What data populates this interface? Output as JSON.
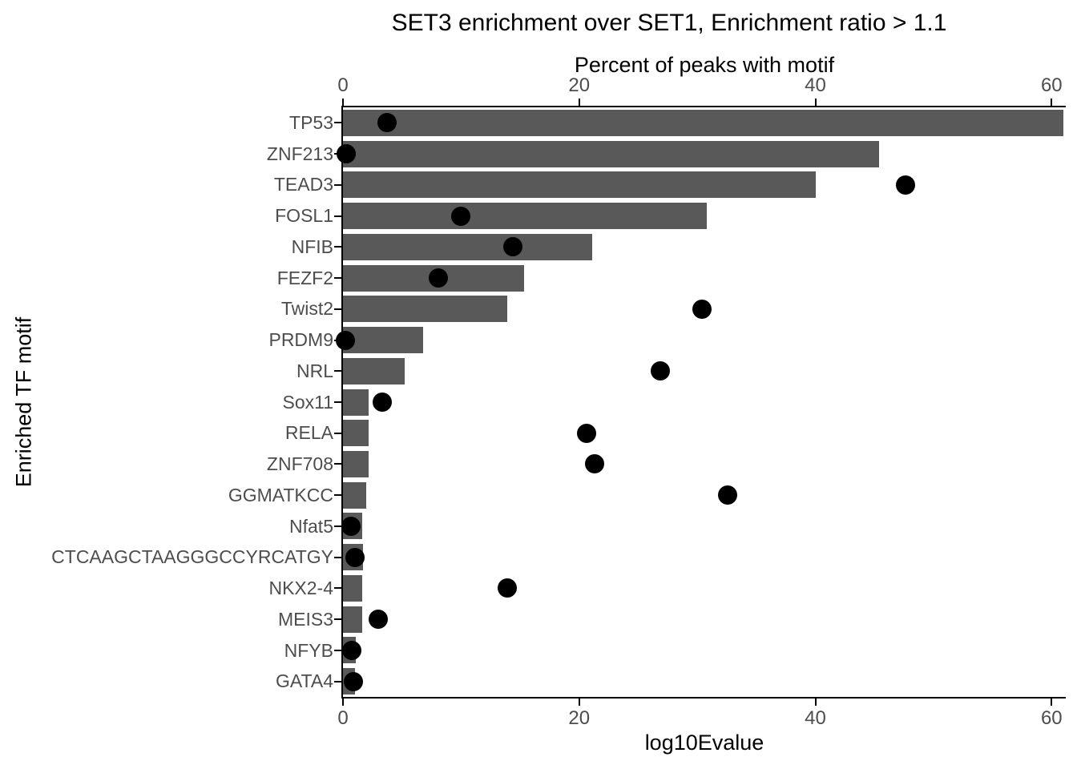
{
  "title": "SET3 enrichment over SET1, Enrichment ratio > 1.1",
  "chart_data": {
    "type": "bar",
    "subtype": "horizontal-bar-with-scatter-overlay",
    "title": "SET3 enrichment over SET1, Enrichment ratio > 1.1",
    "ylabel": "Enriched TF motif",
    "top_axis": {
      "label": "Percent of peaks with motif",
      "ticks": [
        0,
        20,
        40,
        60
      ]
    },
    "bottom_axis": {
      "label": "log10Evalue",
      "ticks": [
        0,
        20,
        40,
        60
      ]
    },
    "xlim": [
      0,
      61.2
    ],
    "grid": "off",
    "legend": "none",
    "categories": [
      "TP53",
      "ZNF213",
      "TEAD3",
      "FOSL1",
      "NFIB",
      "FEZF2",
      "Twist2",
      "PRDM9",
      "NRL",
      "Sox11",
      "RELA",
      "ZNF708",
      "GGMATKCC",
      "Nfat5",
      "CTCAAGCTAAGGGCCYRCATGY",
      "NKX2-4",
      "MEIS3",
      "NFYB",
      "GATA4"
    ],
    "series": [
      {
        "name": "Percent of peaks with motif",
        "geom": "bar",
        "values": [
          61,
          45.4,
          40,
          30.8,
          21.1,
          15.3,
          13.9,
          6.8,
          5.2,
          2.2,
          2.2,
          2.2,
          2.0,
          1.6,
          1.7,
          1.6,
          1.6,
          1.1,
          1.0
        ]
      },
      {
        "name": "log10Evalue",
        "geom": "point",
        "values": [
          3.7,
          0.3,
          47.6,
          10.0,
          14.4,
          8.1,
          30.4,
          0.2,
          26.9,
          3.3,
          20.6,
          21.3,
          32.6,
          0.7,
          1.0,
          13.9,
          3.0,
          0.75,
          0.86
        ]
      }
    ],
    "colors": {
      "bar": "#595959",
      "dot": "#000000",
      "axis_line": "#000000",
      "tick_text": "#4d4d4d",
      "title_text": "#000000",
      "background": "#ffffff"
    }
  }
}
